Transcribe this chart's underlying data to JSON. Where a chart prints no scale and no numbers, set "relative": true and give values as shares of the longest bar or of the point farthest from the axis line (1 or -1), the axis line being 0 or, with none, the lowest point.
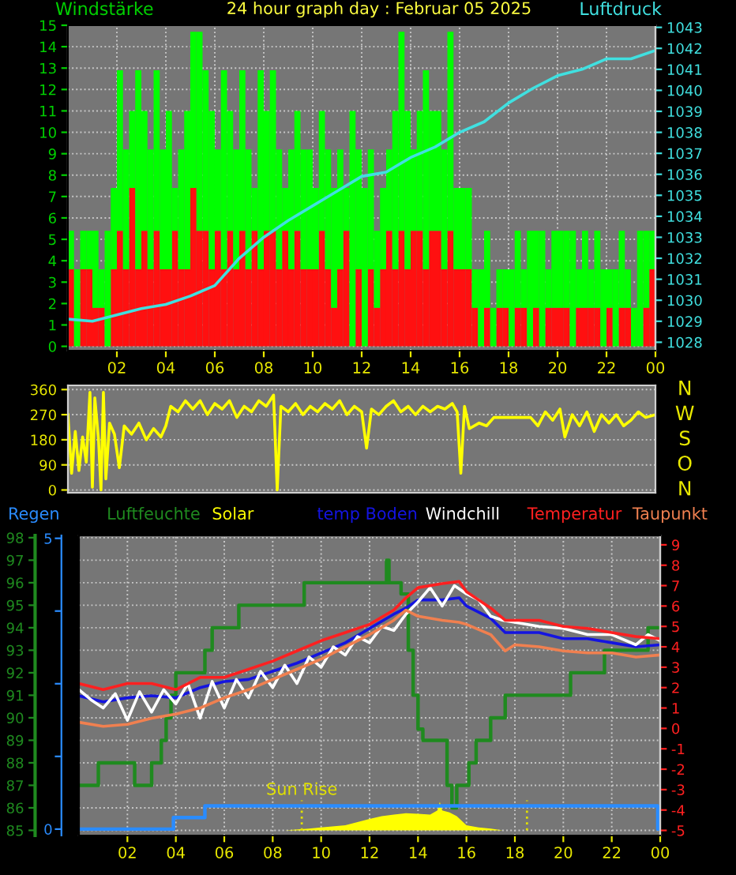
{
  "chart_data": [
    {
      "type": "bar",
      "title": "24 hour graph day : Februar 05 2025",
      "ylabel": "Windstärke",
      "y2label": "Luftdruck",
      "xlim": [
        "2025-02-05T00:00",
        "2025-02-06T00:00"
      ],
      "xticks": [
        {
          "value": "2025-02-05T02:00",
          "label": "02"
        },
        {
          "value": "2025-02-05T04:00",
          "label": "04"
        },
        {
          "value": "2025-02-05T06:00",
          "label": "06"
        },
        {
          "value": "2025-02-05T08:00",
          "label": "08"
        },
        {
          "value": "2025-02-05T10:00",
          "label": "10"
        },
        {
          "value": "2025-02-05T12:00",
          "label": "12"
        },
        {
          "value": "2025-02-05T14:00",
          "label": "14"
        },
        {
          "value": "2025-02-05T16:00",
          "label": "16"
        },
        {
          "value": "2025-02-05T18:00",
          "label": "18"
        },
        {
          "value": "2025-02-05T20:00",
          "label": "20"
        },
        {
          "value": "2025-02-05T22:00",
          "label": "22"
        },
        {
          "value": "2025-02-06T00:00",
          "label": "00"
        }
      ],
      "ylim": [
        -0.2,
        15
      ],
      "yticks": [
        0,
        1,
        2,
        3,
        4,
        5,
        6,
        7,
        8,
        9,
        10,
        11,
        12,
        13,
        14,
        15
      ],
      "y2lim": [
        1027.6,
        1043.1
      ],
      "y2ticks": [
        1028,
        1029,
        1030,
        1031,
        1032,
        1033,
        1034,
        1035,
        1036,
        1037,
        1038,
        1039,
        1040,
        1041,
        1042,
        1043
      ],
      "grid": true,
      "stacked": true,
      "x": [
        "2025-02-05T00:00",
        "2025-02-05T00:15",
        "2025-02-05T00:30",
        "2025-02-05T00:45",
        "2025-02-05T01:00",
        "2025-02-05T01:15",
        "2025-02-05T01:30",
        "2025-02-05T01:45",
        "2025-02-05T02:00",
        "2025-02-05T02:15",
        "2025-02-05T02:30",
        "2025-02-05T02:45",
        "2025-02-05T03:00",
        "2025-02-05T03:15",
        "2025-02-05T03:30",
        "2025-02-05T03:45",
        "2025-02-05T04:00",
        "2025-02-05T04:15",
        "2025-02-05T04:30",
        "2025-02-05T04:45",
        "2025-02-05T05:00",
        "2025-02-05T05:15",
        "2025-02-05T05:30",
        "2025-02-05T05:45",
        "2025-02-05T06:00",
        "2025-02-05T06:15",
        "2025-02-05T06:30",
        "2025-02-05T06:45",
        "2025-02-05T07:00",
        "2025-02-05T07:15",
        "2025-02-05T07:30",
        "2025-02-05T07:45",
        "2025-02-05T08:00",
        "2025-02-05T08:15",
        "2025-02-05T08:30",
        "2025-02-05T08:45",
        "2025-02-05T09:00",
        "2025-02-05T09:15",
        "2025-02-05T09:30",
        "2025-02-05T09:45",
        "2025-02-05T10:00",
        "2025-02-05T10:15",
        "2025-02-05T10:30",
        "2025-02-05T10:45",
        "2025-02-05T11:00",
        "2025-02-05T11:15",
        "2025-02-05T11:30",
        "2025-02-05T11:45",
        "2025-02-05T12:00",
        "2025-02-05T12:15",
        "2025-02-05T12:30",
        "2025-02-05T12:45",
        "2025-02-05T13:00",
        "2025-02-05T13:15",
        "2025-02-05T13:30",
        "2025-02-05T13:45",
        "2025-02-05T14:00",
        "2025-02-05T14:15",
        "2025-02-05T14:30",
        "2025-02-05T14:45",
        "2025-02-05T15:00",
        "2025-02-05T15:15",
        "2025-02-05T15:30",
        "2025-02-05T15:45",
        "2025-02-05T16:00",
        "2025-02-05T16:15",
        "2025-02-05T16:30",
        "2025-02-05T16:45",
        "2025-02-05T17:00",
        "2025-02-05T17:15",
        "2025-02-05T17:30",
        "2025-02-05T17:45",
        "2025-02-05T18:00",
        "2025-02-05T18:15",
        "2025-02-05T18:30",
        "2025-02-05T18:45",
        "2025-02-05T19:00",
        "2025-02-05T19:15",
        "2025-02-05T19:30",
        "2025-02-05T19:45",
        "2025-02-05T20:00",
        "2025-02-05T20:15",
        "2025-02-05T20:30",
        "2025-02-05T20:45",
        "2025-02-05T21:00",
        "2025-02-05T21:15",
        "2025-02-05T21:30",
        "2025-02-05T21:45",
        "2025-02-05T22:00",
        "2025-02-05T22:15",
        "2025-02-05T22:30",
        "2025-02-05T22:45",
        "2025-02-05T23:00",
        "2025-02-05T23:15",
        "2025-02-05T23:30",
        "2025-02-05T23:45"
      ],
      "series": [
        {
          "color": "#ff1010",
          "values": [
            3.6,
            0,
            3.6,
            3.6,
            1.8,
            1.8,
            0,
            3.6,
            5.4,
            3.6,
            7.4,
            3.6,
            5.4,
            3.6,
            5.4,
            3.6,
            3.6,
            5.4,
            3.6,
            3.6,
            7.4,
            5.4,
            5.4,
            3.6,
            5.4,
            3.6,
            5.4,
            3.6,
            5.4,
            3.6,
            5.4,
            3.6,
            5.4,
            5.4,
            3.6,
            5.4,
            3.6,
            5.4,
            3.6,
            3.6,
            3.6,
            5.4,
            3.6,
            1.8,
            3.6,
            5.4,
            0,
            3.6,
            0,
            3.6,
            1.8,
            3.6,
            5.4,
            3.6,
            5.4,
            3.6,
            5.4,
            5.4,
            3.6,
            5.4,
            5.4,
            3.6,
            5.4,
            3.6,
            3.6,
            3.6,
            1.8,
            0,
            1.8,
            0,
            1.8,
            1.8,
            0,
            1.8,
            1.8,
            0,
            1.8,
            0,
            1.8,
            1.8,
            1.8,
            1.8,
            0,
            1.8,
            1.8,
            1.8,
            1.8,
            0,
            1.8,
            0,
            1.8,
            1.8,
            0,
            0,
            1.8,
            3.6
          ]
        },
        {
          "color": "#00ff00",
          "values": [
            1.8,
            3.6,
            1.8,
            1.8,
            3.6,
            1.8,
            5.4,
            3.8,
            7.5,
            5.6,
            3.6,
            9.3,
            5.6,
            5.6,
            7.5,
            5.6,
            7.4,
            2.0,
            5.6,
            7.4,
            7.3,
            9.3,
            7.5,
            7.4,
            3.8,
            9.3,
            5.6,
            5.6,
            7.5,
            5.6,
            2.0,
            9.3,
            5.6,
            7.5,
            5.6,
            2.0,
            5.6,
            5.6,
            5.6,
            5.6,
            3.8,
            5.6,
            5.6,
            5.6,
            5.6,
            2.0,
            11,
            5.6,
            7.4,
            5.6,
            3.6,
            3.8,
            3.8,
            7.4,
            9.3,
            7.4,
            3.8,
            5.6,
            9.3,
            5.6,
            5.6,
            5.6,
            9.3,
            3.8,
            3.8,
            3.8,
            1.8,
            3.6,
            3.6,
            1.8,
            1.8,
            1.8,
            3.6,
            3.6,
            1.8,
            5.4,
            3.6,
            5.4,
            1.8,
            3.6,
            3.6,
            3.6,
            5.4,
            1.8,
            3.6,
            1.8,
            3.6,
            3.6,
            1.8,
            3.6,
            3.6,
            1.8,
            1.8,
            5.4,
            3.6,
            1.8
          ]
        },
        {
          "type": "line",
          "axis": "y2",
          "color": "#40e0e0",
          "x": [
            "2025-02-05T00:00",
            "2025-02-05T01:00",
            "2025-02-05T02:00",
            "2025-02-05T03:00",
            "2025-02-05T04:00",
            "2025-02-05T05:00",
            "2025-02-05T06:00",
            "2025-02-05T07:00",
            "2025-02-05T08:00",
            "2025-02-05T09:00",
            "2025-02-05T10:00",
            "2025-02-05T11:00",
            "2025-02-05T12:00",
            "2025-02-05T13:00",
            "2025-02-05T14:00",
            "2025-02-05T15:00",
            "2025-02-05T16:00",
            "2025-02-05T17:00",
            "2025-02-05T18:00",
            "2025-02-05T19:00",
            "2025-02-05T20:00",
            "2025-02-05T21:00",
            "2025-02-05T22:00",
            "2025-02-05T23:00",
            "2025-02-06T00:00"
          ],
          "values": [
            1029.1,
            1029.0,
            1029.3,
            1029.6,
            1029.8,
            1030.2,
            1030.7,
            1032.0,
            1033.0,
            1033.8,
            1034.5,
            1035.2,
            1035.9,
            1036.1,
            1036.8,
            1037.3,
            1038.0,
            1038.5,
            1039.4,
            1040.1,
            1040.7,
            1041.0,
            1041.5,
            1041.5,
            1041.9
          ]
        }
      ]
    },
    {
      "type": "line",
      "tick_labels": "y",
      "xlim": [
        "2025-02-05T00:00",
        "2025-02-06T00:00"
      ],
      "ylim": [
        -10,
        375
      ],
      "yticks": [
        0,
        90,
        180,
        270,
        360
      ],
      "annotations": [
        "N",
        "W",
        "S",
        "O",
        "N"
      ],
      "grid": "y",
      "series": [
        {
          "color": "#ffff00",
          "x": [
            "2025-02-05T00:00",
            "2025-02-05T00:09",
            "2025-02-05T00:18",
            "2025-02-05T00:27",
            "2025-02-05T00:36",
            "2025-02-05T00:45",
            "2025-02-05T00:54",
            "2025-02-05T01:00",
            "2025-02-05T01:06",
            "2025-02-05T01:15",
            "2025-02-05T01:21",
            "2025-02-05T01:27",
            "2025-02-05T01:33",
            "2025-02-05T01:42",
            "2025-02-05T01:54",
            "2025-02-05T02:06",
            "2025-02-05T02:18",
            "2025-02-05T02:36",
            "2025-02-05T02:54",
            "2025-02-05T03:12",
            "2025-02-05T03:30",
            "2025-02-05T03:48",
            "2025-02-05T04:00",
            "2025-02-05T04:12",
            "2025-02-05T04:30",
            "2025-02-05T04:48",
            "2025-02-05T05:06",
            "2025-02-05T05:24",
            "2025-02-05T05:42",
            "2025-02-05T06:00",
            "2025-02-05T06:18",
            "2025-02-05T06:36",
            "2025-02-05T06:54",
            "2025-02-05T07:12",
            "2025-02-05T07:30",
            "2025-02-05T07:48",
            "2025-02-05T08:06",
            "2025-02-05T08:24",
            "2025-02-05T08:33",
            "2025-02-05T08:42",
            "2025-02-05T09:00",
            "2025-02-05T09:18",
            "2025-02-05T09:36",
            "2025-02-05T09:54",
            "2025-02-05T10:12",
            "2025-02-05T10:30",
            "2025-02-05T10:48",
            "2025-02-05T11:06",
            "2025-02-05T11:24",
            "2025-02-05T11:42",
            "2025-02-05T12:00",
            "2025-02-05T12:12",
            "2025-02-05T12:24",
            "2025-02-05T12:42",
            "2025-02-05T13:00",
            "2025-02-05T13:18",
            "2025-02-05T13:36",
            "2025-02-05T13:54",
            "2025-02-05T14:12",
            "2025-02-05T14:30",
            "2025-02-05T14:48",
            "2025-02-05T15:06",
            "2025-02-05T15:24",
            "2025-02-05T15:42",
            "2025-02-05T15:54",
            "2025-02-05T16:03",
            "2025-02-05T16:12",
            "2025-02-05T16:24",
            "2025-02-05T16:48",
            "2025-02-05T17:06",
            "2025-02-05T17:24",
            "2025-02-05T18:00",
            "2025-02-05T18:54",
            "2025-02-05T19:12",
            "2025-02-05T19:30",
            "2025-02-05T19:48",
            "2025-02-05T20:06",
            "2025-02-05T20:18",
            "2025-02-05T20:36",
            "2025-02-05T20:54",
            "2025-02-05T21:12",
            "2025-02-05T21:30",
            "2025-02-05T21:48",
            "2025-02-05T22:06",
            "2025-02-05T22:24",
            "2025-02-05T22:42",
            "2025-02-05T23:00",
            "2025-02-05T23:18",
            "2025-02-05T23:36",
            "2025-02-06T00:00"
          ],
          "values": [
            270,
            60,
            210,
            70,
            190,
            100,
            350,
            10,
            330,
            180,
            0,
            350,
            40,
            240,
            200,
            80,
            230,
            200,
            240,
            180,
            220,
            190,
            230,
            300,
            280,
            320,
            290,
            320,
            270,
            310,
            290,
            320,
            260,
            300,
            280,
            320,
            300,
            340,
            0,
            300,
            280,
            310,
            270,
            300,
            280,
            310,
            290,
            320,
            270,
            300,
            280,
            150,
            290,
            270,
            300,
            320,
            280,
            300,
            270,
            300,
            280,
            300,
            290,
            310,
            280,
            60,
            300,
            220,
            240,
            230,
            260,
            260,
            260,
            230,
            280,
            250,
            290,
            190,
            270,
            230,
            280,
            210,
            270,
            240,
            270,
            230,
            250,
            280,
            260,
            270
          ]
        }
      ]
    },
    {
      "type": "line",
      "legend": "top",
      "xlim": [
        "2025-02-05T00:00",
        "2025-02-06T00:00"
      ],
      "xticks": [
        {
          "value": "2025-02-05T02:00",
          "label": "02"
        },
        {
          "value": "2025-02-05T04:00",
          "label": "04"
        },
        {
          "value": "2025-02-05T06:00",
          "label": "06"
        },
        {
          "value": "2025-02-05T08:00",
          "label": "08"
        },
        {
          "value": "2025-02-05T10:00",
          "label": "10"
        },
        {
          "value": "2025-02-05T12:00",
          "label": "12"
        },
        {
          "value": "2025-02-05T14:00",
          "label": "14"
        },
        {
          "value": "2025-02-05T16:00",
          "label": "16"
        },
        {
          "value": "2025-02-05T18:00",
          "label": "18"
        },
        {
          "value": "2025-02-05T20:00",
          "label": "20"
        },
        {
          "value": "2025-02-05T22:00",
          "label": "22"
        },
        {
          "value": "2025-02-06T00:00",
          "label": "00"
        }
      ],
      "ylim": [
        84.77,
        98.1
      ],
      "yticks": [
        85,
        86,
        87,
        88,
        89,
        90,
        91,
        92,
        93,
        94,
        95,
        96,
        97,
        98
      ],
      "y3lim": [
        -0.11,
        5.05
      ],
      "y3ticks": [
        0,
        {
          "value": 1.25,
          "label": null
        },
        {
          "value": 2.5,
          "label": null
        },
        {
          "value": 3.75,
          "label": null
        },
        5
      ],
      "y2lim": [
        -5.25,
        9.46
      ],
      "y2ticks": [
        -5,
        -4,
        -3,
        -2,
        -1,
        0,
        1,
        2,
        3,
        4,
        5,
        6,
        7,
        8,
        9
      ],
      "grid": true,
      "series": [
        {
          "name": "Regen",
          "type": "step",
          "axis": "y3",
          "color": "#2a8cff",
          "x": [
            "2025-02-05T00:00",
            "2025-02-05T03:54",
            "2025-02-05T05:12",
            "2025-02-05T23:54",
            "2025-02-06T00:00"
          ],
          "values": [
            0,
            0.2,
            0.4,
            0,
            0
          ]
        },
        {
          "name": "Luftfeuchte",
          "type": "step",
          "axis": "y",
          "color": "#1f8a1f",
          "x": [
            "2025-02-05T00:00",
            "2025-02-05T00:48",
            "2025-02-05T02:18",
            "2025-02-05T03:00",
            "2025-02-05T03:24",
            "2025-02-05T03:36",
            "2025-02-05T03:48",
            "2025-02-05T04:00",
            "2025-02-05T05:12",
            "2025-02-05T05:30",
            "2025-02-05T06:36",
            "2025-02-05T09:18",
            "2025-02-05T12:42",
            "2025-02-05T12:48",
            "2025-02-05T13:18",
            "2025-02-05T13:36",
            "2025-02-05T13:48",
            "2025-02-05T14:00",
            "2025-02-05T14:12",
            "2025-02-05T15:12",
            "2025-02-05T15:24",
            "2025-02-05T15:36",
            "2025-02-05T16:06",
            "2025-02-05T16:24",
            "2025-02-05T17:00",
            "2025-02-05T17:36",
            "2025-02-05T20:18",
            "2025-02-05T21:42",
            "2025-02-05T23:30",
            "2025-02-06T00:00"
          ],
          "values": [
            87,
            88,
            87,
            88,
            89,
            90,
            91,
            92,
            93,
            94,
            95,
            96,
            97,
            96,
            95.5,
            93,
            91,
            89.5,
            89,
            87,
            86,
            87,
            88,
            89,
            90,
            91,
            92,
            93,
            94,
            94
          ]
        },
        {
          "name": "temp Boden",
          "axis": "y2",
          "color": "#1414e0",
          "x": [
            "2025-02-05T00:00",
            "2025-02-05T01:00",
            "2025-02-05T02:00",
            "2025-02-05T03:00",
            "2025-02-05T04:00",
            "2025-02-05T05:00",
            "2025-02-05T06:00",
            "2025-02-05T07:00",
            "2025-02-05T08:00",
            "2025-02-05T09:00",
            "2025-02-05T10:00",
            "2025-02-05T11:00",
            "2025-02-05T12:00",
            "2025-02-05T13:00",
            "2025-02-05T13:30",
            "2025-02-05T14:00",
            "2025-02-05T15:00",
            "2025-02-05T15:42",
            "2025-02-05T16:00",
            "2025-02-05T17:00",
            "2025-02-05T17:36",
            "2025-02-05T18:00",
            "2025-02-05T19:00",
            "2025-02-05T20:00",
            "2025-02-05T21:00",
            "2025-02-05T22:00",
            "2025-02-05T23:00",
            "2025-02-06T00:00"
          ],
          "values": [
            1.6,
            1.3,
            1.5,
            1.6,
            1.5,
            2.0,
            2.3,
            2.4,
            2.8,
            3.2,
            3.7,
            4.2,
            4.9,
            5.6,
            5.9,
            6.3,
            6.3,
            6.4,
            6.0,
            5.4,
            4.7,
            4.7,
            4.7,
            4.4,
            4.4,
            4.2,
            4.0,
            4.1
          ]
        },
        {
          "name": "Windchill",
          "axis": "y2",
          "color": "#ffffff",
          "x": [
            "2025-02-05T00:00",
            "2025-02-05T00:30",
            "2025-02-05T01:00",
            "2025-02-05T01:30",
            "2025-02-05T02:00",
            "2025-02-05T02:30",
            "2025-02-05T03:00",
            "2025-02-05T03:30",
            "2025-02-05T04:00",
            "2025-02-05T04:30",
            "2025-02-05T05:00",
            "2025-02-05T05:30",
            "2025-02-05T06:00",
            "2025-02-05T06:30",
            "2025-02-05T07:00",
            "2025-02-05T07:30",
            "2025-02-05T08:00",
            "2025-02-05T08:30",
            "2025-02-05T09:00",
            "2025-02-05T09:30",
            "2025-02-05T10:00",
            "2025-02-05T10:30",
            "2025-02-05T11:00",
            "2025-02-05T11:30",
            "2025-02-05T12:00",
            "2025-02-05T12:30",
            "2025-02-05T13:00",
            "2025-02-05T13:30",
            "2025-02-05T14:00",
            "2025-02-05T14:30",
            "2025-02-05T15:00",
            "2025-02-05T15:30",
            "2025-02-05T16:00",
            "2025-02-05T16:30",
            "2025-02-05T17:00",
            "2025-02-05T17:30",
            "2025-02-05T18:00",
            "2025-02-05T19:00",
            "2025-02-05T20:00",
            "2025-02-05T21:00",
            "2025-02-05T22:00",
            "2025-02-05T23:00",
            "2025-02-05T23:30",
            "2025-02-06T00:00"
          ],
          "values": [
            1.9,
            1.4,
            1.0,
            1.7,
            0.4,
            1.8,
            0.8,
            1.9,
            1.2,
            2.2,
            0.5,
            2.3,
            1.0,
            2.4,
            1.5,
            2.8,
            2.0,
            3.1,
            2.2,
            3.5,
            3.0,
            4.0,
            3.6,
            4.5,
            4.2,
            5.0,
            4.8,
            5.6,
            6.2,
            6.9,
            6.0,
            7.0,
            6.6,
            6.3,
            5.5,
            5.3,
            5.2,
            5.0,
            4.9,
            4.6,
            4.6,
            4.1,
            4.6,
            4.3
          ]
        },
        {
          "name": "Temperatur",
          "axis": "y2",
          "color": "#ff2020",
          "x": [
            "2025-02-05T00:00",
            "2025-02-05T01:00",
            "2025-02-05T02:00",
            "2025-02-05T03:00",
            "2025-02-05T04:00",
            "2025-02-05T05:00",
            "2025-02-05T06:00",
            "2025-02-05T07:00",
            "2025-02-05T08:00",
            "2025-02-05T09:00",
            "2025-02-05T10:00",
            "2025-02-05T11:00",
            "2025-02-05T12:00",
            "2025-02-05T13:00",
            "2025-02-05T13:30",
            "2025-02-05T14:00",
            "2025-02-05T15:00",
            "2025-02-05T15:42",
            "2025-02-05T16:00",
            "2025-02-05T17:00",
            "2025-02-05T17:36",
            "2025-02-05T18:00",
            "2025-02-05T19:00",
            "2025-02-05T20:00",
            "2025-02-05T21:00",
            "2025-02-05T22:00",
            "2025-02-05T23:00",
            "2025-02-06T00:00"
          ],
          "values": [
            2.2,
            1.9,
            2.2,
            2.2,
            1.9,
            2.5,
            2.5,
            2.9,
            3.3,
            3.8,
            4.3,
            4.7,
            5.1,
            5.8,
            6.4,
            6.9,
            7.1,
            7.2,
            6.7,
            5.9,
            5.3,
            5.3,
            5.3,
            5.0,
            4.9,
            4.7,
            4.5,
            4.4
          ]
        },
        {
          "name": "Taupunkt",
          "axis": "y2",
          "color": "#f08050",
          "x": [
            "2025-02-05T00:00",
            "2025-02-05T01:00",
            "2025-02-05T02:00",
            "2025-02-05T03:00",
            "2025-02-05T04:00",
            "2025-02-05T05:00",
            "2025-02-05T06:00",
            "2025-02-05T07:00",
            "2025-02-05T08:00",
            "2025-02-05T09:00",
            "2025-02-05T10:00",
            "2025-02-05T11:00",
            "2025-02-05T12:00",
            "2025-02-05T13:00",
            "2025-02-05T13:30",
            "2025-02-05T14:00",
            "2025-02-05T15:00",
            "2025-02-05T15:42",
            "2025-02-05T16:00",
            "2025-02-05T17:00",
            "2025-02-05T17:36",
            "2025-02-05T18:00",
            "2025-02-05T19:00",
            "2025-02-05T20:00",
            "2025-02-05T21:00",
            "2025-02-05T22:00",
            "2025-02-05T23:00",
            "2025-02-06T00:00"
          ],
          "values": [
            0.3,
            0.1,
            0.2,
            0.5,
            0.7,
            1.0,
            1.5,
            1.9,
            2.4,
            2.9,
            3.4,
            4.0,
            4.6,
            5.3,
            5.8,
            5.5,
            5.3,
            5.2,
            5.1,
            4.6,
            3.8,
            4.1,
            4.0,
            3.8,
            3.7,
            3.7,
            3.5,
            3.6
          ]
        }
      ]
    },
    {
      "type": "area",
      "relative": true,
      "legend": "top",
      "tick_labels": false,
      "xlim": [
        "2025-02-05T00:00",
        "2025-02-06T00:00"
      ],
      "ref_lines": [
        {
          "axis": "x",
          "value": "2025-02-05T09:12",
          "label": "Sun Rise",
          "color": "#e0e000",
          "line_style": "dotted"
        },
        {
          "axis": "x",
          "value": "2025-02-05T18:30",
          "color": "#e0e000",
          "line_style": "dotted"
        }
      ],
      "series": [
        {
          "name": "Solar",
          "color": "#ffff00",
          "x": [
            "2025-02-05T00:00",
            "2025-02-05T04:00",
            "2025-02-05T08:30",
            "2025-02-05T09:30",
            "2025-02-05T10:00",
            "2025-02-05T11:00",
            "2025-02-05T12:00",
            "2025-02-05T12:30",
            "2025-02-05T13:00",
            "2025-02-05T13:30",
            "2025-02-05T14:00",
            "2025-02-05T14:30",
            "2025-02-05T14:48",
            "2025-02-05T14:54",
            "2025-02-05T15:00",
            "2025-02-05T15:18",
            "2025-02-05T15:36",
            "2025-02-05T16:00",
            "2025-02-05T16:30",
            "2025-02-05T17:00",
            "2025-02-05T17:30",
            "2025-02-06T00:00"
          ],
          "values": [
            0,
            0,
            0,
            0.06,
            0.1,
            0.18,
            0.4,
            0.5,
            0.55,
            0.6,
            0.58,
            0.55,
            0.7,
            1.0,
            0.7,
            0.63,
            0.5,
            0.18,
            0.1,
            0.06,
            0,
            0
          ]
        }
      ]
    }
  ]
}
